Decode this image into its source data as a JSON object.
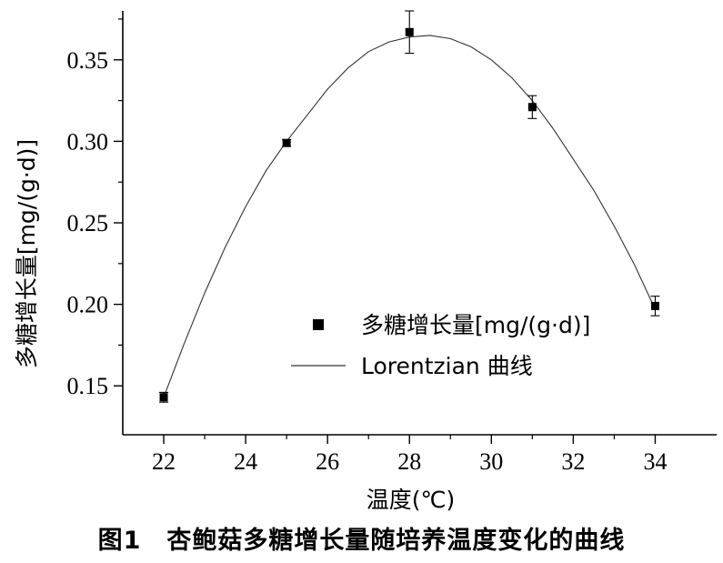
{
  "caption": "图1　杏鲍菇多糖增长量随培养温度变化的曲线",
  "chart_data": {
    "type": "scatter",
    "xlabel": "温度(℃)",
    "ylabel": "多糖增长量[mg/(g·d)]",
    "xlim": [
      21,
      35.5
    ],
    "ylim": [
      0.12,
      0.38
    ],
    "x_ticks": [
      22,
      24,
      26,
      28,
      30,
      32,
      34
    ],
    "x_tick_labels": [
      "22",
      "24",
      "26",
      "28",
      "30",
      "32",
      "34"
    ],
    "y_ticks": [
      0.15,
      0.2,
      0.25,
      0.3,
      0.35
    ],
    "y_tick_labels": [
      "0.15",
      "0.20",
      "0.25",
      "0.30",
      "0.35"
    ],
    "grid": false,
    "legend_position": "center-right",
    "series": [
      {
        "name": "多糖增长量[mg/(g·d)]",
        "kind": "points",
        "color": "#000000",
        "marker": "square",
        "x": [
          22,
          25,
          28,
          31,
          34
        ],
        "y": [
          0.143,
          0.299,
          0.367,
          0.321,
          0.199
        ],
        "error": [
          0.003,
          0.002,
          0.013,
          0.007,
          0.006
        ]
      },
      {
        "name": "Lorentzian 曲线",
        "kind": "fit",
        "color": "#333333",
        "x": [
          22,
          22.5,
          23,
          23.5,
          24,
          24.5,
          25,
          25.5,
          26,
          26.5,
          27,
          27.5,
          28,
          28.5,
          29,
          29.5,
          30,
          30.5,
          31,
          31.5,
          32,
          32.5,
          33,
          33.5,
          34
        ],
        "y": [
          0.143,
          0.176,
          0.207,
          0.235,
          0.26,
          0.282,
          0.3,
          0.316,
          0.332,
          0.345,
          0.355,
          0.361,
          0.364,
          0.365,
          0.363,
          0.358,
          0.35,
          0.339,
          0.325,
          0.308,
          0.289,
          0.27,
          0.248,
          0.224,
          0.197
        ]
      }
    ]
  }
}
